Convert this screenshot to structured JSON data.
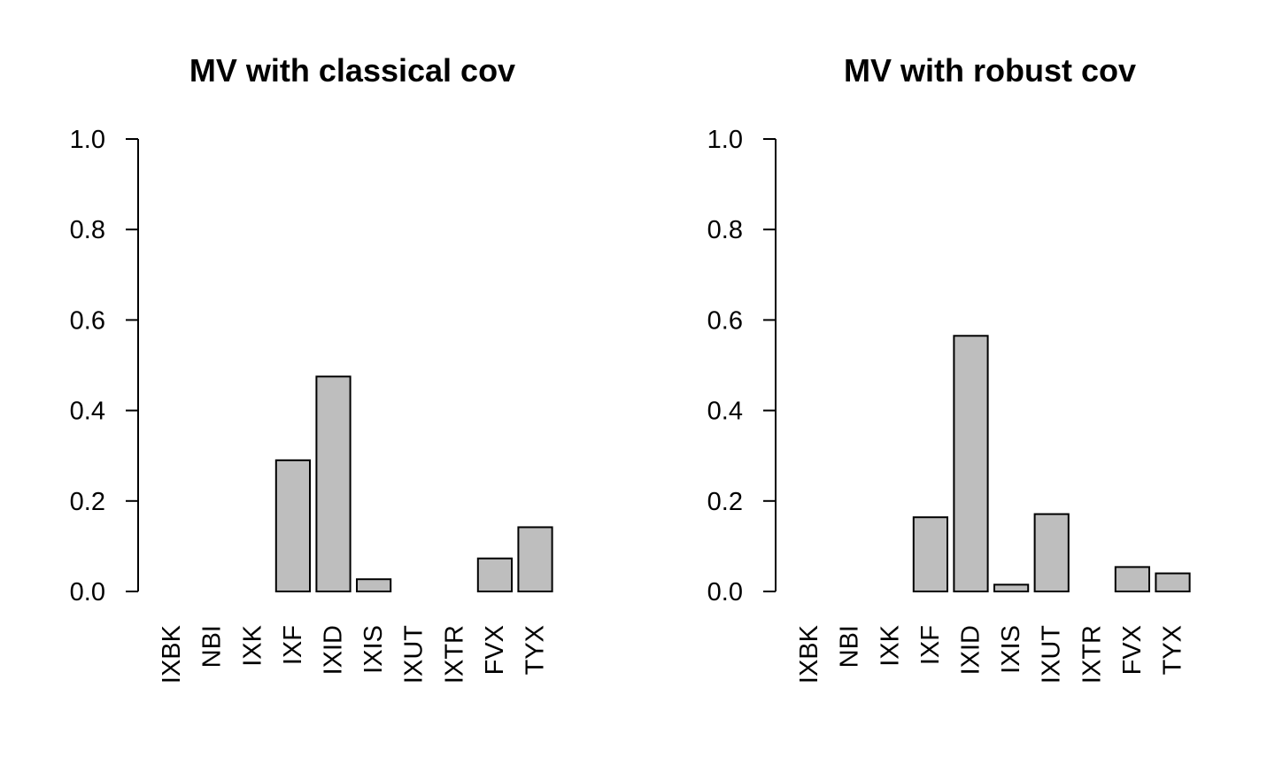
{
  "chart_data": [
    {
      "type": "bar",
      "title": "MV with classical cov",
      "xlabel": "",
      "ylabel": "",
      "categories": [
        "IXBK",
        "NBI",
        "IXK",
        "IXF",
        "IXID",
        "IXIS",
        "IXUT",
        "IXTR",
        "FVX",
        "TYX"
      ],
      "values": [
        0,
        0,
        0,
        0.29,
        0.475,
        0.027,
        0,
        0,
        0.073,
        0.142
      ],
      "ylim": [
        0,
        1
      ],
      "yticks": [
        "0.0",
        "0.2",
        "0.4",
        "0.6",
        "0.8",
        "1.0"
      ],
      "bar_color": "#bebebe",
      "grid": false,
      "legend": "none"
    },
    {
      "type": "bar",
      "title": "MV with robust cov",
      "xlabel": "",
      "ylabel": "",
      "categories": [
        "IXBK",
        "NBI",
        "IXK",
        "IXF",
        "IXID",
        "IXIS",
        "IXUT",
        "IXTR",
        "FVX",
        "TYX"
      ],
      "values": [
        0,
        0,
        0,
        0.164,
        0.565,
        0.015,
        0.171,
        0,
        0.054,
        0.04
      ],
      "ylim": [
        0,
        1
      ],
      "yticks": [
        "0.0",
        "0.2",
        "0.4",
        "0.6",
        "0.8",
        "1.0"
      ],
      "bar_color": "#bebebe",
      "grid": false,
      "legend": "none"
    }
  ]
}
